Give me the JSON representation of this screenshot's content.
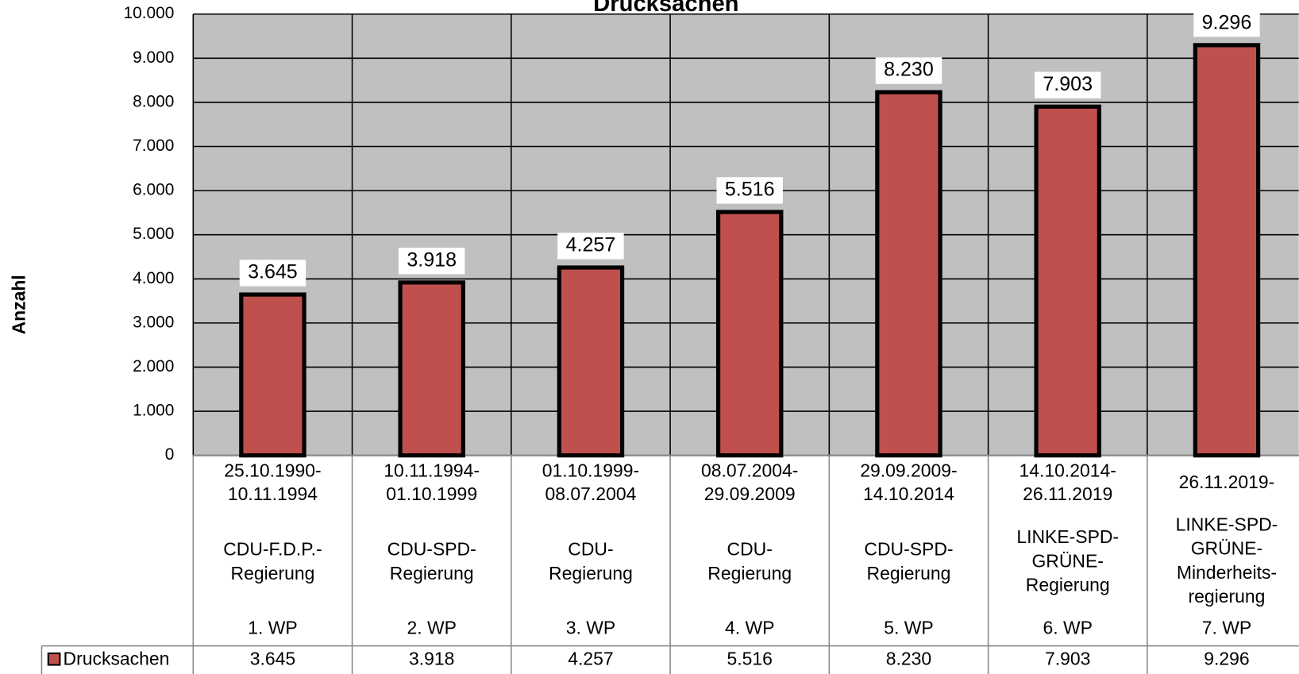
{
  "chart_data": {
    "type": "bar",
    "title": "Drucksachen",
    "y_label": "Anzahl",
    "categories": [
      "1. WP",
      "2. WP",
      "3. WP",
      "4. WP",
      "5. WP",
      "6. WP",
      "7. WP"
    ],
    "periods": [
      [
        "25.10.1990-",
        "10.11.1994"
      ],
      [
        "10.11.1994-",
        "01.10.1999"
      ],
      [
        "01.10.1999-",
        "08.07.2004"
      ],
      [
        "08.07.2004-",
        "29.09.2009"
      ],
      [
        "29.09.2009-",
        "14.10.2014"
      ],
      [
        "14.10.2014-",
        "26.11.2019"
      ],
      [
        "26.11.2019-"
      ]
    ],
    "governments": [
      [
        "CDU-F.D.P.-",
        "Regierung"
      ],
      [
        "CDU-SPD-",
        "Regierung"
      ],
      [
        "CDU-",
        "Regierung"
      ],
      [
        "CDU-",
        "Regierung"
      ],
      [
        "CDU-SPD-",
        "Regierung"
      ],
      [
        "LINKE-SPD-",
        "GRÜNE-",
        "Regierung"
      ],
      [
        "LINKE-SPD-",
        "GRÜNE-",
        "Minderheits-",
        "regierung"
      ]
    ],
    "series": [
      {
        "name": "Drucksachen",
        "color": "#c0504d",
        "values": [
          3645,
          3918,
          4257,
          5516,
          8230,
          7903,
          9296
        ],
        "value_labels": [
          "3.645",
          "3.918",
          "4.257",
          "5.516",
          "8.230",
          "7.903",
          "9.296"
        ]
      }
    ],
    "ylim": [
      0,
      10000
    ],
    "yticks": [
      0,
      {
        "value": 1000,
        "label": "1.000"
      },
      {
        "value": 2000,
        "label": "2.000"
      },
      {
        "value": 3000,
        "label": "3.000"
      },
      {
        "value": 4000,
        "label": "4.000"
      },
      {
        "value": 5000,
        "label": "5.000"
      },
      {
        "value": 6000,
        "label": "6.000"
      },
      {
        "value": 7000,
        "label": "7.000"
      },
      {
        "value": 8000,
        "label": "8.000"
      },
      {
        "value": 9000,
        "label": "9.000"
      },
      {
        "value": 10000,
        "label": "10.000"
      }
    ],
    "grid": true,
    "plot_background": "#c0c0c0"
  }
}
